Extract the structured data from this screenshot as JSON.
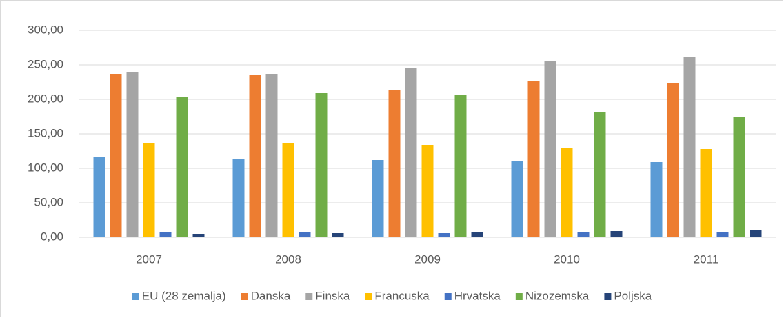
{
  "chart_data": {
    "type": "bar",
    "categories": [
      "2007",
      "2008",
      "2009",
      "2010",
      "2011"
    ],
    "series": [
      {
        "name": "EU (28 zemalja)",
        "color": "#5b9bd5",
        "values": [
          117,
          113,
          112,
          111,
          109
        ]
      },
      {
        "name": "Danska",
        "color": "#ed7d31",
        "values": [
          237,
          235,
          214,
          227,
          224
        ]
      },
      {
        "name": "Finska",
        "color": "#a5a5a5",
        "values": [
          239,
          236,
          246,
          256,
          262
        ]
      },
      {
        "name": "Francuska",
        "color": "#ffc000",
        "values": [
          136,
          136,
          134,
          130,
          128
        ]
      },
      {
        "name": "Hrvatska",
        "color": "#4472c4",
        "values": [
          7,
          7,
          6,
          7,
          7
        ]
      },
      {
        "name": "Nizozemska",
        "color": "#70ad47",
        "values": [
          203,
          209,
          206,
          182,
          175
        ]
      },
      {
        "name": "Poljska",
        "color": "#264478",
        "values": [
          5,
          6,
          7,
          9,
          10
        ]
      }
    ],
    "ylim": [
      0,
      300
    ],
    "yticks": [
      {
        "value": 0,
        "label": "0,00"
      },
      {
        "value": 50,
        "label": "50,00"
      },
      {
        "value": 100,
        "label": "100,00"
      },
      {
        "value": 150,
        "label": "150,00"
      },
      {
        "value": 200,
        "label": "200,00"
      },
      {
        "value": 250,
        "label": "250,00"
      },
      {
        "value": 300,
        "label": "300,00"
      }
    ],
    "grid": true,
    "legend": "bottom"
  }
}
